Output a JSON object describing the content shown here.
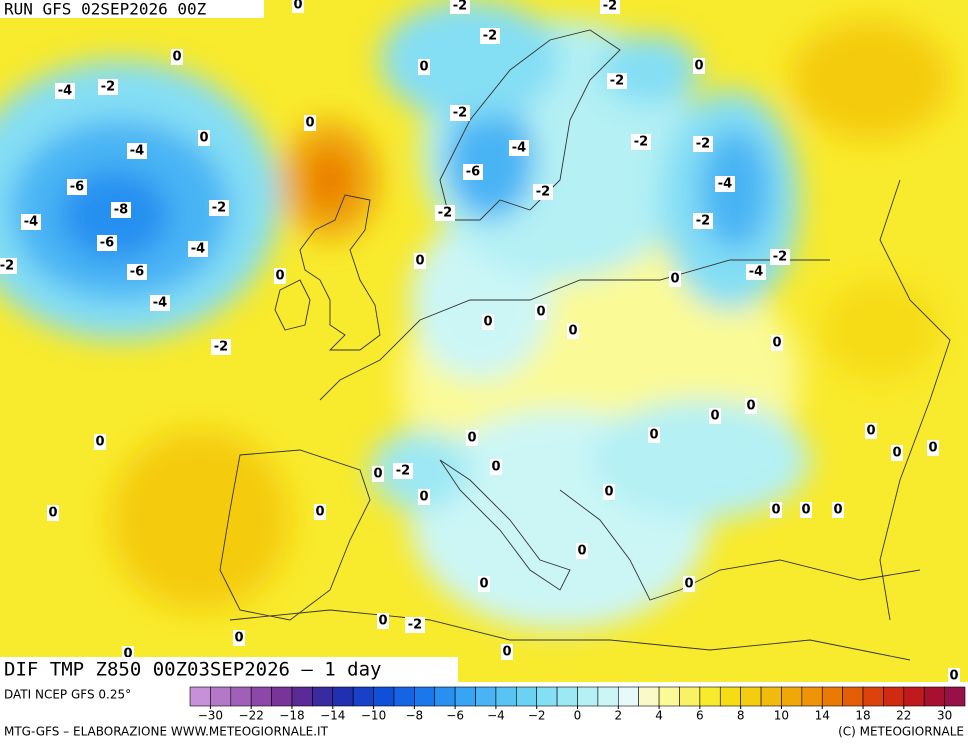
{
  "header": {
    "run": "RUN GFS 02SEP2026 00Z",
    "product": "DIF TMP Z850 00Z03SEP2026 – 1 day",
    "source": "DATI NCEP GFS 0.25°",
    "credit": "MTG-GFS – ELABORAZIONE WWW.METEOGIORNALE.IT",
    "copyright": "(C) METEOGIORNALE"
  },
  "map": {
    "contour_labels": [
      "0",
      "-2",
      "-2",
      "-2",
      "0",
      "0",
      "0",
      "-2",
      "-4",
      "-2",
      "-2",
      "0",
      "0",
      "-2",
      "-2",
      "-4",
      "-4",
      "-6",
      "-6",
      "-4",
      "-2",
      "-8",
      "-2",
      "-2",
      "-4",
      "-2",
      "-6",
      "-4",
      "-2",
      "0",
      "-2",
      "-6",
      "-4",
      "0",
      "0",
      "-4",
      "0",
      "0",
      "0",
      "-2",
      "0",
      "0",
      "0",
      "0",
      "0",
      "0",
      "0",
      "0",
      "0",
      "0",
      "0",
      "-2",
      "0",
      "0",
      "0",
      "0",
      "0",
      "0",
      "0",
      "0",
      "0",
      "0",
      "0",
      "-2",
      "0",
      "0",
      "0",
      "0"
    ]
  },
  "colorbar": {
    "ticks": [
      -30,
      -22,
      -18,
      -14,
      -10,
      -8,
      -6,
      -4,
      -2,
      0,
      2,
      4,
      6,
      8,
      10,
      14,
      18,
      22,
      30
    ],
    "colors": [
      "#c890d8",
      "#b478c8",
      "#a060b8",
      "#8c48a8",
      "#783498",
      "#5a2a96",
      "#3a2aa0",
      "#2030b0",
      "#1840c8",
      "#1050d8",
      "#1464e4",
      "#1a78ec",
      "#2890f0",
      "#38a4f4",
      "#48b4f4",
      "#58c4f4",
      "#6cd2f4",
      "#84def4",
      "#9ce8f4",
      "#b4f0f4",
      "#ccf6f6",
      "#e6fafa",
      "#fafac8",
      "#fafa96",
      "#f8f264",
      "#f8ea2c",
      "#f6dc14",
      "#f4cc10",
      "#f2ba0c",
      "#f0a808",
      "#ee9406",
      "#ea7a06",
      "#e45e08",
      "#dc420c",
      "#d02a12",
      "#c01a1e",
      "#a81030",
      "#98104a"
    ]
  }
}
